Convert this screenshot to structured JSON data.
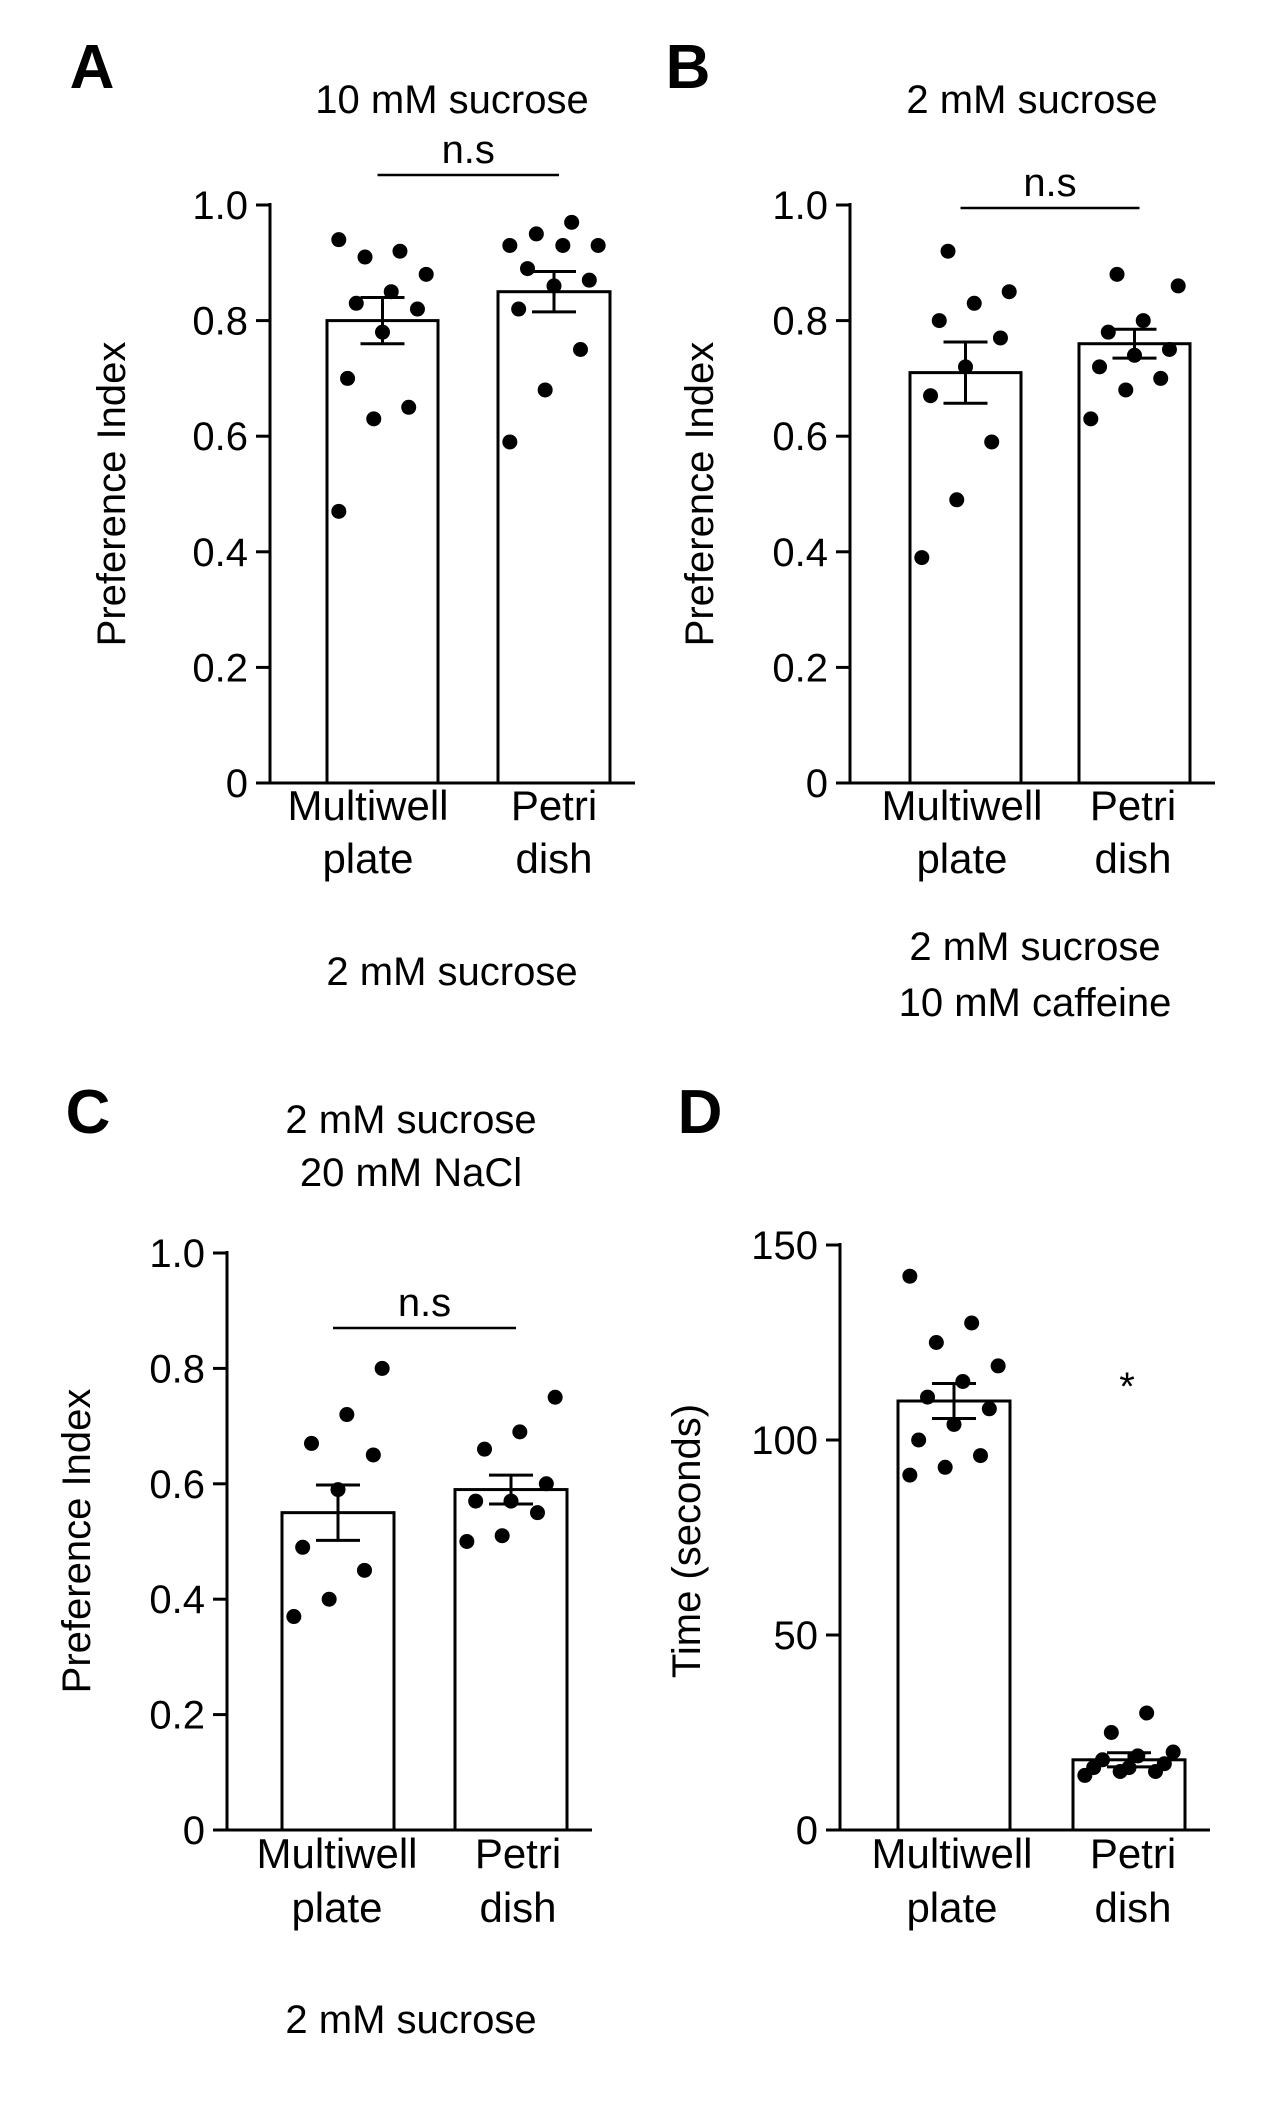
{
  "chart_data": [
    {
      "panel": "A",
      "type": "bar",
      "title": "10 mM sucrose",
      "footer": [
        "2 mM sucrose"
      ],
      "ylabel": "Preference Index",
      "ylim": [
        0,
        1.0
      ],
      "yticks": [
        "0",
        "0.2",
        "0.4",
        "0.6",
        "0.8",
        "1.0"
      ],
      "categories": [
        [
          "Multiwell",
          "plate"
        ],
        [
          "Petri",
          "dish"
        ]
      ],
      "values": [
        0.8,
        0.85
      ],
      "errors": [
        0.04,
        0.035
      ],
      "points": [
        [
          0.47,
          0.63,
          0.65,
          0.7,
          0.78,
          0.82,
          0.83,
          0.85,
          0.88,
          0.91,
          0.92,
          0.94
        ],
        [
          0.59,
          0.68,
          0.75,
          0.82,
          0.86,
          0.87,
          0.89,
          0.93,
          0.93,
          0.95,
          0.97,
          0.93
        ]
      ],
      "significance": "n.s"
    },
    {
      "panel": "B",
      "type": "bar",
      "title": "2 mM sucrose",
      "footer": [
        "2 mM sucrose",
        "10 mM caffeine"
      ],
      "ylabel": "Preference Index",
      "ylim": [
        0,
        1.0
      ],
      "yticks": [
        "0",
        "0.2",
        "0.4",
        "0.6",
        "0.8",
        "1.0"
      ],
      "categories": [
        [
          "Multiwell",
          "plate"
        ],
        [
          "Petri",
          "dish"
        ]
      ],
      "values": [
        0.71,
        0.76
      ],
      "errors": [
        0.053,
        0.025
      ],
      "points": [
        [
          0.39,
          0.49,
          0.59,
          0.67,
          0.72,
          0.77,
          0.8,
          0.83,
          0.85,
          0.92
        ],
        [
          0.63,
          0.68,
          0.7,
          0.72,
          0.74,
          0.75,
          0.78,
          0.8,
          0.86,
          0.88
        ]
      ],
      "significance": "n.s"
    },
    {
      "panel": "C",
      "type": "bar",
      "title": [
        "2 mM sucrose",
        "20 mM NaCl"
      ],
      "footer": [
        "2 mM sucrose"
      ],
      "ylabel": "Preference Index",
      "ylim": [
        0,
        1.0
      ],
      "yticks": [
        "0",
        "0.2",
        "0.4",
        "0.6",
        "0.8",
        "1.0"
      ],
      "categories": [
        [
          "Multiwell",
          "plate"
        ],
        [
          "Petri",
          "dish"
        ]
      ],
      "values": [
        0.55,
        0.59
      ],
      "errors": [
        0.048,
        0.025
      ],
      "points": [
        [
          0.37,
          0.4,
          0.45,
          0.49,
          0.59,
          0.65,
          0.67,
          0.72,
          0.8
        ],
        [
          0.5,
          0.51,
          0.55,
          0.57,
          0.57,
          0.6,
          0.66,
          0.69,
          0.75
        ]
      ],
      "significance": "n.s"
    },
    {
      "panel": "D",
      "type": "bar",
      "title": "",
      "footer": [],
      "ylabel": "Time (seconds)",
      "ylim": [
        0,
        150
      ],
      "yticks": [
        "0",
        "50",
        "100",
        "150"
      ],
      "categories": [
        [
          "Multiwell",
          "plate"
        ],
        [
          "Petri",
          "dish"
        ]
      ],
      "values": [
        110,
        18
      ],
      "errors": [
        4.5,
        1.8
      ],
      "points": [
        [
          91,
          93,
          96,
          100,
          104,
          108,
          111,
          115,
          119,
          125,
          130,
          142
        ],
        [
          14,
          15,
          15,
          16,
          16,
          17,
          18,
          19,
          20,
          25,
          30
        ]
      ],
      "significance": "*"
    }
  ]
}
